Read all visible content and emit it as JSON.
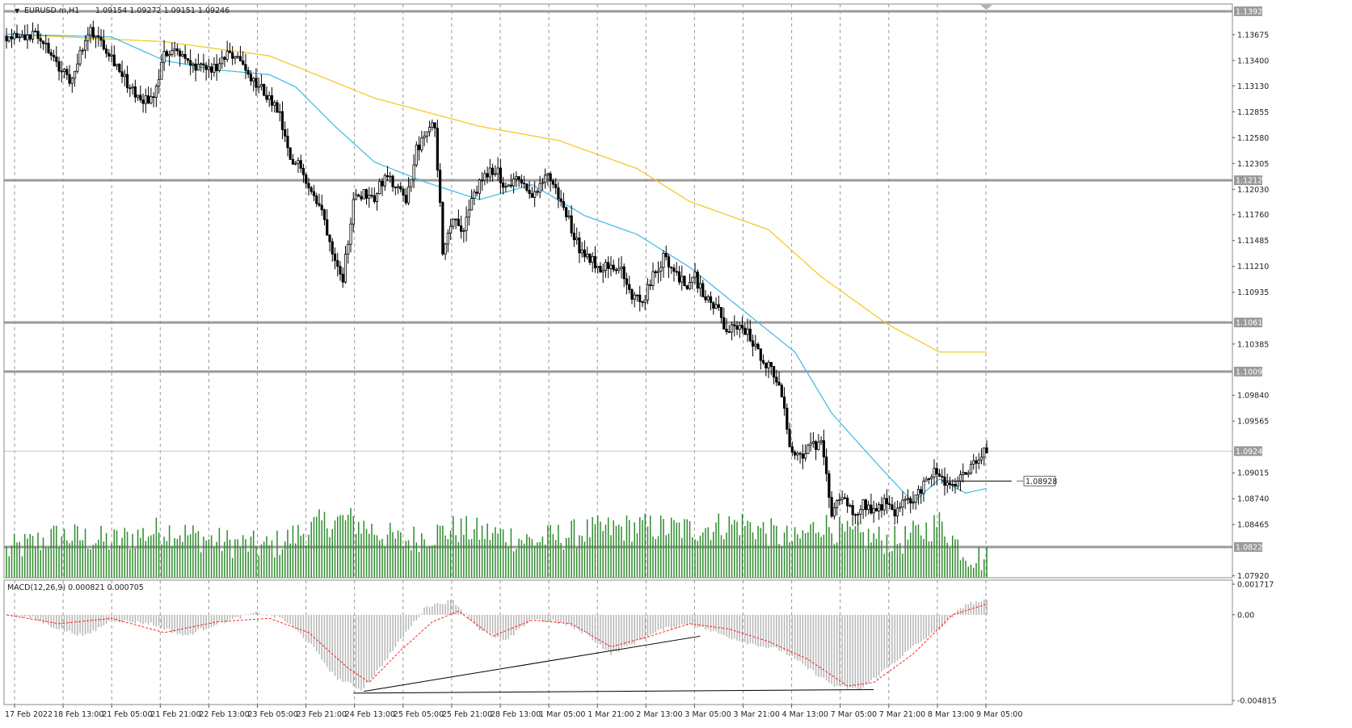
{
  "header": {
    "symbol_label": "EURUSD.m,H1",
    "ohlc_label": "1.09154 1.09272 1.09151 1.09246"
  },
  "colors": {
    "candle": "#000000",
    "volume": "#2e8b2e",
    "ma_fast": "#3db8e6",
    "ma_slow": "#f5c518",
    "macd_hist": "#b5b5b5",
    "macd_signal": "#ff2020",
    "level_line": "#9a9a9a",
    "trendline": "#000000"
  },
  "chart_data": [
    {
      "type": "candlestick",
      "name": "EURUSD.m,H1",
      "y_ticks": [
        "1.13675",
        "1.13400",
        "1.13130",
        "1.12855",
        "1.12580",
        "1.12305",
        "1.12030",
        "1.11760",
        "1.11485",
        "1.11210",
        "1.10935",
        "1.10385",
        "1.09840",
        "1.09565",
        "1.09015",
        "1.08740",
        "1.08465",
        "1.07920"
      ],
      "ylim": [
        1.079,
        1.14
      ],
      "x_ticks": [
        "17 Feb 2022",
        "18 Feb 13:00",
        "21 Feb 05:00",
        "21 Feb 21:00",
        "22 Feb 13:00",
        "23 Feb 05:00",
        "23 Feb 21:00",
        "24 Feb 13:00",
        "25 Feb 05:00",
        "25 Feb 21:00",
        "28 Feb 13:00",
        "1 Mar 05:00",
        "1 Mar 21:00",
        "2 Mar 13:00",
        "3 Mar 05:00",
        "3 Mar 21:00",
        "4 Mar 13:00",
        "7 Mar 05:00",
        "7 Mar 21:00",
        "8 Mar 13:00",
        "9 Mar 05:00"
      ],
      "price_path": [
        [
          0,
          1.1366
        ],
        [
          6,
          1.1368
        ],
        [
          12,
          1.1365
        ],
        [
          16,
          1.135
        ],
        [
          20,
          1.133
        ],
        [
          24,
          1.132
        ],
        [
          28,
          1.1345
        ],
        [
          32,
          1.1372
        ],
        [
          36,
          1.1362
        ],
        [
          40,
          1.1345
        ],
        [
          44,
          1.1325
        ],
        [
          48,
          1.1307
        ],
        [
          52,
          1.1298
        ],
        [
          56,
          1.13
        ],
        [
          60,
          1.1345
        ],
        [
          64,
          1.1355
        ],
        [
          68,
          1.134
        ],
        [
          72,
          1.133
        ],
        [
          76,
          1.1332
        ],
        [
          80,
          1.133
        ],
        [
          84,
          1.1345
        ],
        [
          88,
          1.1345
        ],
        [
          92,
          1.1322
        ],
        [
          96,
          1.1312
        ],
        [
          100,
          1.13
        ],
        [
          104,
          1.128
        ],
        [
          108,
          1.123
        ],
        [
          112,
          1.123
        ],
        [
          116,
          1.12
        ],
        [
          120,
          1.118
        ],
        [
          124,
          1.114
        ],
        [
          128,
          1.111
        ],
        [
          132,
          1.119
        ],
        [
          136,
          1.12
        ],
        [
          140,
          1.1195
        ],
        [
          144,
          1.1218
        ],
        [
          148,
          1.1205
        ],
        [
          152,
          1.119
        ],
        [
          156,
          1.1245
        ],
        [
          160,
          1.1262
        ],
        [
          163,
          1.1272
        ],
        [
          166,
          1.114
        ],
        [
          170,
          1.1175
        ],
        [
          174,
          1.116
        ],
        [
          178,
          1.12
        ],
        [
          182,
          1.1215
        ],
        [
          186,
          1.1225
        ],
        [
          190,
          1.1205
        ],
        [
          194,
          1.1215
        ],
        [
          198,
          1.12
        ],
        [
          202,
          1.12
        ],
        [
          206,
          1.122
        ],
        [
          210,
          1.1195
        ],
        [
          214,
          1.117
        ],
        [
          218,
          1.114
        ],
        [
          222,
          1.113
        ],
        [
          226,
          1.112
        ],
        [
          230,
          1.1125
        ],
        [
          234,
          1.1115
        ],
        [
          238,
          1.109
        ],
        [
          242,
          1.1082
        ],
        [
          246,
          1.111
        ],
        [
          250,
          1.113
        ],
        [
          254,
          1.112
        ],
        [
          258,
          1.11
        ],
        [
          262,
          1.111
        ],
        [
          266,
          1.1085
        ],
        [
          270,
          1.108
        ],
        [
          274,
          1.105
        ],
        [
          278,
          1.1058
        ],
        [
          282,
          1.105
        ],
        [
          286,
          1.103
        ],
        [
          290,
          1.1015
        ],
        [
          294,
          1.1
        ],
        [
          298,
          1.093
        ],
        [
          302,
          1.092
        ],
        [
          306,
          1.093
        ],
        [
          310,
          1.093
        ],
        [
          314,
          1.086
        ],
        [
          318,
          1.088
        ],
        [
          322,
          1.0855
        ],
        [
          326,
          1.087
        ],
        [
          330,
          1.086
        ],
        [
          334,
          1.087
        ],
        [
          338,
          1.086
        ],
        [
          342,
          1.087
        ],
        [
          346,
          1.0875
        ],
        [
          350,
          1.0895
        ],
        [
          354,
          1.0905
        ],
        [
          358,
          1.0885
        ],
        [
          362,
          1.0892
        ],
        [
          366,
          1.0905
        ],
        [
          370,
          1.0918
        ],
        [
          373,
          1.09246
        ]
      ],
      "n_bars": 374,
      "ma_fast_path": [
        [
          0,
          1.1368
        ],
        [
          40,
          1.1365
        ],
        [
          60,
          1.134
        ],
        [
          80,
          1.133
        ],
        [
          100,
          1.1325
        ],
        [
          110,
          1.1312
        ],
        [
          125,
          1.127
        ],
        [
          140,
          1.1232
        ],
        [
          160,
          1.121
        ],
        [
          180,
          1.1192
        ],
        [
          200,
          1.1208
        ],
        [
          220,
          1.1175
        ],
        [
          240,
          1.1155
        ],
        [
          260,
          1.112
        ],
        [
          280,
          1.1075
        ],
        [
          300,
          1.103
        ],
        [
          314,
          1.0965
        ],
        [
          330,
          1.0915
        ],
        [
          345,
          1.087
        ],
        [
          355,
          1.0895
        ],
        [
          365,
          1.088
        ],
        [
          373,
          1.0885
        ]
      ],
      "ma_slow_path": [
        [
          0,
          1.1368
        ],
        [
          60,
          1.136
        ],
        [
          100,
          1.1345
        ],
        [
          140,
          1.13
        ],
        [
          180,
          1.127
        ],
        [
          210,
          1.1255
        ],
        [
          240,
          1.1225
        ],
        [
          260,
          1.119
        ],
        [
          290,
          1.116
        ],
        [
          310,
          1.111
        ],
        [
          335,
          1.106
        ],
        [
          355,
          1.103
        ],
        [
          373,
          1.103
        ]
      ],
      "volume_path": [
        [
          0,
          0.22
        ],
        [
          20,
          0.35
        ],
        [
          40,
          0.3
        ],
        [
          60,
          0.4
        ],
        [
          80,
          0.3
        ],
        [
          100,
          0.25
        ],
        [
          120,
          0.45
        ],
        [
          130,
          0.48
        ],
        [
          150,
          0.3
        ],
        [
          170,
          0.4
        ],
        [
          190,
          0.35
        ],
        [
          200,
          0.3
        ],
        [
          220,
          0.38
        ],
        [
          240,
          0.42
        ],
        [
          260,
          0.4
        ],
        [
          280,
          0.45
        ],
        [
          300,
          0.3
        ],
        [
          310,
          0.45
        ],
        [
          320,
          0.35
        ],
        [
          340,
          0.3
        ],
        [
          355,
          0.45
        ],
        [
          365,
          0.2
        ],
        [
          373,
          0.15
        ]
      ],
      "horizontal_levels": [
        {
          "value": 1.13923,
          "label": "1.13923"
        },
        {
          "value": 1.12126,
          "label": "1.12126"
        },
        {
          "value": 1.10614,
          "label": "1.10614"
        },
        {
          "value": 1.10092,
          "label": "1.10092"
        },
        {
          "value": 1.08227,
          "label": "1.08227"
        }
      ],
      "current_price": {
        "value": 1.09246,
        "label": "1.09246"
      },
      "marker_line": {
        "value": 1.08928,
        "label": "1.08928",
        "start_bar": 356,
        "end_bar": 380
      }
    },
    {
      "type": "histogram+line",
      "name": "MACD(12,26,9)",
      "header_label": "MACD(12,26,9) 0.000821 0.000705",
      "y_ticks": [
        "0.001717",
        "0.00",
        "-0.004815"
      ],
      "ylim": [
        -0.004815,
        0.001717
      ],
      "hist_path": [
        [
          0,
          0.0
        ],
        [
          10,
          -0.0002
        ],
        [
          20,
          -0.0008
        ],
        [
          30,
          -0.0012
        ],
        [
          40,
          -0.0003
        ],
        [
          55,
          -0.0005
        ],
        [
          68,
          -0.0012
        ],
        [
          80,
          -0.0005
        ],
        [
          95,
          0.0001
        ],
        [
          105,
          -0.0002
        ],
        [
          115,
          -0.0015
        ],
        [
          125,
          -0.0035
        ],
        [
          135,
          -0.0042
        ],
        [
          142,
          -0.003
        ],
        [
          152,
          -0.001
        ],
        [
          160,
          0.0005
        ],
        [
          170,
          0.0008
        ],
        [
          180,
          -0.0008
        ],
        [
          190,
          -0.0015
        ],
        [
          200,
          -0.0002
        ],
        [
          212,
          -0.0005
        ],
        [
          220,
          -0.001
        ],
        [
          230,
          -0.0022
        ],
        [
          240,
          -0.0015
        ],
        [
          250,
          -0.0008
        ],
        [
          260,
          -0.0005
        ],
        [
          270,
          -0.001
        ],
        [
          280,
          -0.0015
        ],
        [
          295,
          -0.002
        ],
        [
          305,
          -0.003
        ],
        [
          315,
          -0.004
        ],
        [
          325,
          -0.0042
        ],
        [
          335,
          -0.003
        ],
        [
          345,
          -0.0018
        ],
        [
          355,
          -0.0008
        ],
        [
          365,
          0.0006
        ],
        [
          373,
          0.0008
        ]
      ],
      "signal_path": [
        [
          0,
          0.0
        ],
        [
          20,
          -0.0005
        ],
        [
          40,
          -0.0002
        ],
        [
          60,
          -0.001
        ],
        [
          80,
          -0.0004
        ],
        [
          100,
          -0.0002
        ],
        [
          115,
          -0.001
        ],
        [
          130,
          -0.003
        ],
        [
          138,
          -0.0038
        ],
        [
          150,
          -0.002
        ],
        [
          162,
          -0.0004
        ],
        [
          172,
          0.0002
        ],
        [
          185,
          -0.0012
        ],
        [
          200,
          -0.0003
        ],
        [
          215,
          -0.0005
        ],
        [
          230,
          -0.0018
        ],
        [
          245,
          -0.0012
        ],
        [
          260,
          -0.0005
        ],
        [
          275,
          -0.0008
        ],
        [
          290,
          -0.0015
        ],
        [
          305,
          -0.0025
        ],
        [
          320,
          -0.004
        ],
        [
          330,
          -0.0038
        ],
        [
          345,
          -0.0022
        ],
        [
          360,
          0.0
        ],
        [
          373,
          0.0006
        ]
      ],
      "trendlines": [
        {
          "from": [
            136,
            -0.0043
          ],
          "to": [
            264,
            -0.0012
          ]
        },
        {
          "from": [
            132,
            -0.0044
          ],
          "to": [
            330,
            -0.0042
          ]
        }
      ]
    }
  ]
}
